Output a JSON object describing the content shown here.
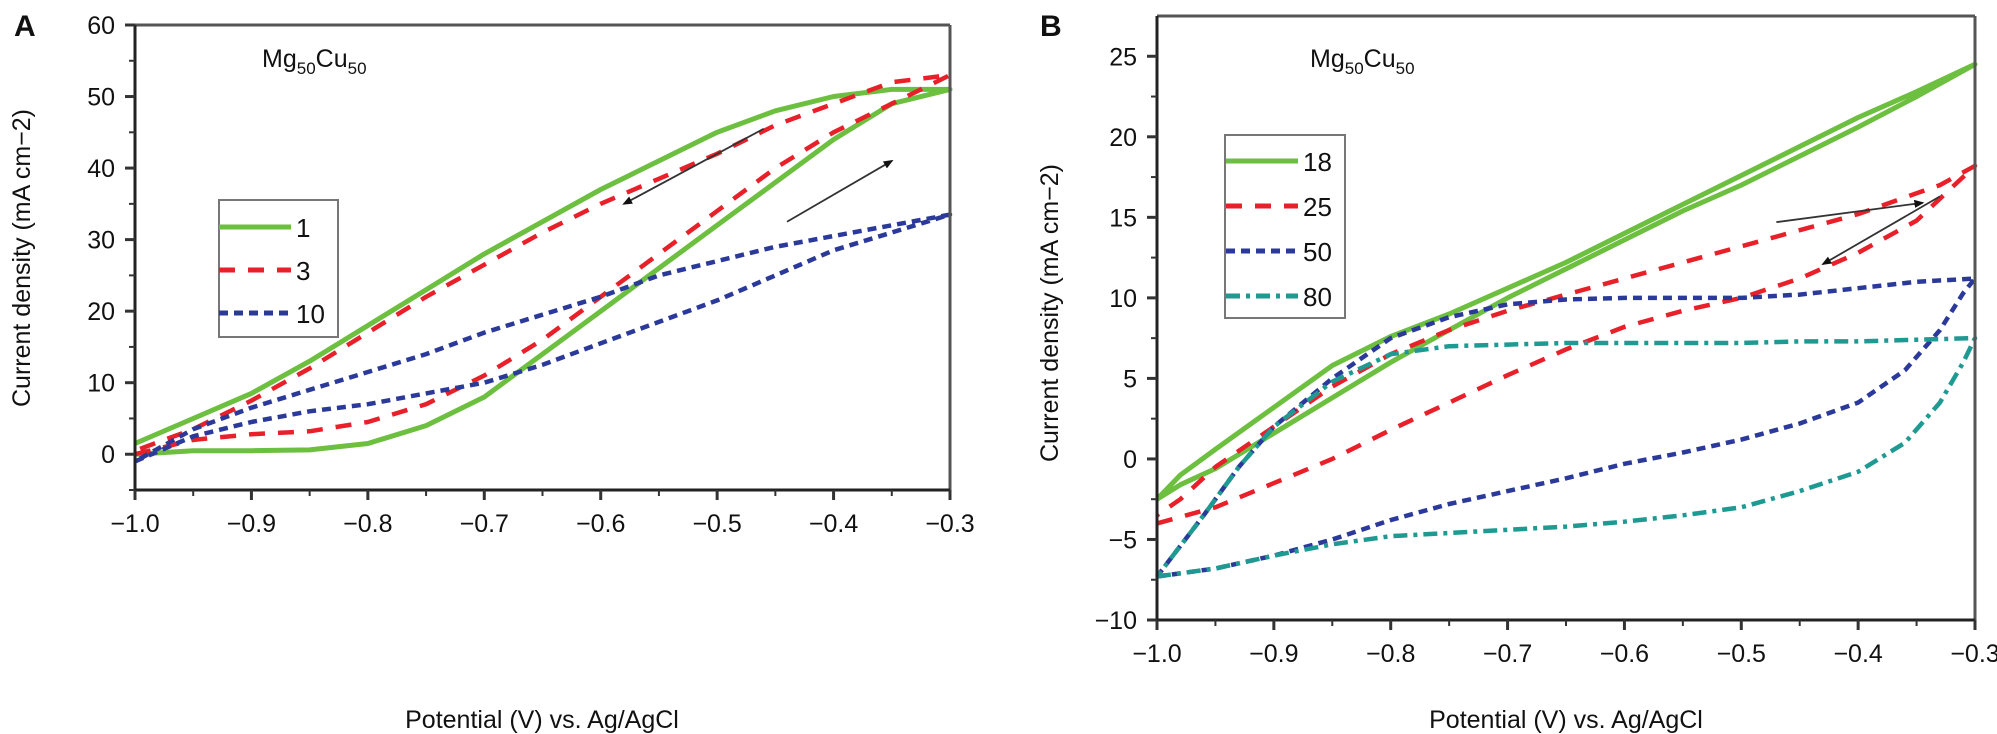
{
  "figure": {
    "panels": [
      "A",
      "B"
    ]
  },
  "chart_data": [
    {
      "type": "line",
      "panel_label": "A",
      "title": "",
      "annotation": {
        "base": "Mg",
        "sub1": "50",
        "mid": "Cu",
        "sub2": "50"
      },
      "xlabel": "Potential (V) vs. Ag/AgCl",
      "ylabel": "Current density (mA cm−2)",
      "xlim": [
        -1.0,
        -0.3
      ],
      "ylim": [
        -5,
        60
      ],
      "xticks": [
        -1.0,
        -0.9,
        -0.8,
        -0.7,
        -0.6,
        -0.5,
        -0.4,
        -0.3
      ],
      "xtick_labels": [
        "−1.0",
        "−0.9",
        "−0.8",
        "−0.7",
        "−0.6",
        "−0.5",
        "−0.4",
        "−0.3"
      ],
      "yticks": [
        0,
        10,
        20,
        30,
        40,
        50,
        60
      ],
      "ytick_labels": [
        "0",
        "10",
        "20",
        "30",
        "40",
        "50",
        "60"
      ],
      "grid": false,
      "legend_position": "upper-left",
      "arrows": [
        {
          "direction": "reverse-scan",
          "from": [
            -0.46,
            45.5
          ],
          "to": [
            -0.58,
            35
          ]
        },
        {
          "direction": "forward-scan",
          "from": [
            -0.44,
            32.5
          ],
          "to": [
            -0.35,
            41
          ]
        }
      ],
      "series": [
        {
          "name": "1",
          "color": "#6cbf3f",
          "style": "solid",
          "x": [
            -1.0,
            -0.95,
            -0.9,
            -0.85,
            -0.8,
            -0.75,
            -0.7,
            -0.65,
            -0.6,
            -0.55,
            -0.5,
            -0.45,
            -0.4,
            -0.35,
            -0.3,
            -0.35,
            -0.4,
            -0.45,
            -0.5,
            -0.55,
            -0.6,
            -0.65,
            -0.7,
            -0.75,
            -0.8,
            -0.85,
            -0.9,
            -0.95,
            -1.0
          ],
          "y": [
            0.0,
            0.5,
            0.5,
            0.6,
            1.5,
            4.0,
            8.0,
            14.0,
            20.0,
            26.0,
            32.0,
            38.0,
            44.0,
            49.0,
            51.0,
            51.0,
            50.0,
            48.0,
            45.0,
            41.0,
            37.0,
            32.5,
            28.0,
            23.0,
            18.0,
            13.0,
            8.5,
            5.0,
            1.5
          ]
        },
        {
          "name": "3",
          "color": "#e8202a",
          "style": "dashed",
          "x": [
            -1.0,
            -0.95,
            -0.9,
            -0.85,
            -0.8,
            -0.75,
            -0.7,
            -0.65,
            -0.6,
            -0.55,
            -0.5,
            -0.45,
            -0.4,
            -0.35,
            -0.3,
            -0.35,
            -0.4,
            -0.45,
            -0.5,
            -0.55,
            -0.6,
            -0.65,
            -0.7,
            -0.75,
            -0.8,
            -0.85,
            -0.9,
            -0.95,
            -1.0
          ],
          "y": [
            0.0,
            2.0,
            2.8,
            3.2,
            4.5,
            7.0,
            11.0,
            16.0,
            22.0,
            28.0,
            34.0,
            40.0,
            45.0,
            49.0,
            53.0,
            52.0,
            49.0,
            46.0,
            42.0,
            38.5,
            35.0,
            31.0,
            26.5,
            22.0,
            17.0,
            12.0,
            7.5,
            3.5,
            0.5
          ]
        },
        {
          "name": "10",
          "color": "#2b3a9a",
          "style": "dotted",
          "x": [
            -1.0,
            -0.95,
            -0.9,
            -0.85,
            -0.8,
            -0.75,
            -0.7,
            -0.65,
            -0.6,
            -0.55,
            -0.5,
            -0.45,
            -0.4,
            -0.35,
            -0.3,
            -0.35,
            -0.4,
            -0.45,
            -0.5,
            -0.55,
            -0.6,
            -0.65,
            -0.7,
            -0.75,
            -0.8,
            -0.85,
            -0.9,
            -0.95,
            -1.0
          ],
          "y": [
            -1.0,
            2.5,
            4.5,
            6.0,
            7.0,
            8.5,
            10.0,
            12.5,
            15.5,
            18.5,
            21.5,
            25.0,
            28.5,
            31.0,
            33.5,
            32.0,
            30.5,
            29.0,
            27.0,
            25.0,
            22.0,
            19.5,
            17.0,
            14.0,
            11.5,
            9.0,
            6.5,
            3.5,
            -1.0
          ]
        }
      ]
    },
    {
      "type": "line",
      "panel_label": "B",
      "title": "",
      "annotation": {
        "base": "Mg",
        "sub1": "50",
        "mid": "Cu",
        "sub2": "50"
      },
      "xlabel": "Potential (V) vs. Ag/AgCl",
      "ylabel": "Current density (mA cm−2)",
      "xlim": [
        -1.0,
        -0.3
      ],
      "ylim": [
        -10,
        27.5
      ],
      "xticks": [
        -1.0,
        -0.9,
        -0.8,
        -0.7,
        -0.6,
        -0.5,
        -0.4,
        -0.3
      ],
      "xtick_labels": [
        "−1.0",
        "−0.9",
        "−0.8",
        "−0.7",
        "−0.6",
        "−0.5",
        "−0.4",
        "−0.3"
      ],
      "yticks": [
        -10,
        -5,
        0,
        5,
        10,
        15,
        20,
        25
      ],
      "ytick_labels": [
        "−10",
        "−5",
        "0",
        "5",
        "10",
        "15",
        "20",
        "25"
      ],
      "grid": false,
      "legend_position": "upper-left",
      "arrows": [
        {
          "direction": "forward-scan",
          "from": [
            -0.47,
            14.7
          ],
          "to": [
            -0.345,
            15.9
          ]
        },
        {
          "direction": "reverse-scan",
          "from": [
            -0.33,
            16.3
          ],
          "to": [
            -0.43,
            12.1
          ]
        }
      ],
      "series": [
        {
          "name": "18",
          "color": "#6cbf3f",
          "style": "solid",
          "x": [
            -1.0,
            -0.98,
            -0.95,
            -0.9,
            -0.85,
            -0.8,
            -0.75,
            -0.7,
            -0.65,
            -0.6,
            -0.55,
            -0.5,
            -0.45,
            -0.4,
            -0.35,
            -0.3,
            -0.35,
            -0.4,
            -0.45,
            -0.5,
            -0.55,
            -0.6,
            -0.65,
            -0.7,
            -0.75,
            -0.8,
            -0.85,
            -0.9,
            -0.95,
            -0.98,
            -1.0
          ],
          "y": [
            -2.5,
            -1.6,
            -0.6,
            1.6,
            3.8,
            6.0,
            8.0,
            10.0,
            11.8,
            13.6,
            15.4,
            17.0,
            18.8,
            20.6,
            22.5,
            24.5,
            22.8,
            21.2,
            19.4,
            17.6,
            15.8,
            14.0,
            12.2,
            10.6,
            9.0,
            7.6,
            5.8,
            3.2,
            0.6,
            -1.0,
            -2.5
          ]
        },
        {
          "name": "25",
          "color": "#e8202a",
          "style": "dashed",
          "x": [
            -1.0,
            -0.95,
            -0.9,
            -0.85,
            -0.8,
            -0.75,
            -0.7,
            -0.65,
            -0.6,
            -0.55,
            -0.5,
            -0.45,
            -0.4,
            -0.35,
            -0.3,
            -0.33,
            -0.35,
            -0.4,
            -0.45,
            -0.5,
            -0.55,
            -0.6,
            -0.65,
            -0.7,
            -0.75,
            -0.8,
            -0.85,
            -0.9,
            -0.95,
            -0.98,
            -1.0
          ],
          "y": [
            -4.0,
            -3.0,
            -1.5,
            0.0,
            1.8,
            3.5,
            5.2,
            6.8,
            8.2,
            9.2,
            10.0,
            11.2,
            12.8,
            14.8,
            18.2,
            17.0,
            16.5,
            15.2,
            14.2,
            13.2,
            12.2,
            11.2,
            10.2,
            9.2,
            8.0,
            6.5,
            4.5,
            2.0,
            -0.5,
            -2.5,
            -3.5
          ]
        },
        {
          "name": "50",
          "color": "#2b3a9a",
          "style": "dotted",
          "x": [
            -1.0,
            -0.95,
            -0.9,
            -0.85,
            -0.8,
            -0.75,
            -0.7,
            -0.65,
            -0.6,
            -0.55,
            -0.5,
            -0.45,
            -0.4,
            -0.36,
            -0.33,
            -0.31,
            -0.3,
            -0.35,
            -0.4,
            -0.45,
            -0.5,
            -0.55,
            -0.6,
            -0.65,
            -0.7,
            -0.75,
            -0.8,
            -0.85,
            -0.9,
            -0.93,
            -0.96,
            -1.0
          ],
          "y": [
            -7.3,
            -6.8,
            -6.0,
            -5.0,
            -3.8,
            -2.8,
            -2.0,
            -1.2,
            -0.3,
            0.4,
            1.2,
            2.2,
            3.5,
            5.5,
            8.0,
            10.3,
            11.2,
            11.0,
            10.6,
            10.2,
            10.0,
            10.0,
            10.0,
            9.9,
            9.6,
            8.8,
            7.5,
            5.0,
            2.0,
            -0.5,
            -3.5,
            -7.3
          ]
        },
        {
          "name": "80",
          "color": "#1f9a92",
          "style": "dashdot",
          "x": [
            -1.0,
            -0.95,
            -0.9,
            -0.85,
            -0.8,
            -0.75,
            -0.7,
            -0.65,
            -0.6,
            -0.55,
            -0.5,
            -0.45,
            -0.4,
            -0.36,
            -0.33,
            -0.31,
            -0.3,
            -0.35,
            -0.4,
            -0.45,
            -0.5,
            -0.55,
            -0.6,
            -0.65,
            -0.7,
            -0.75,
            -0.8,
            -0.85,
            -0.9,
            -0.93,
            -0.96,
            -1.0
          ],
          "y": [
            -7.3,
            -6.8,
            -6.0,
            -5.3,
            -4.8,
            -4.6,
            -4.4,
            -4.2,
            -3.9,
            -3.5,
            -3.0,
            -2.0,
            -0.8,
            1.0,
            3.5,
            6.0,
            7.5,
            7.4,
            7.3,
            7.3,
            7.2,
            7.2,
            7.2,
            7.2,
            7.1,
            7.0,
            6.5,
            4.8,
            2.0,
            -0.5,
            -3.5,
            -7.3
          ]
        }
      ]
    }
  ]
}
